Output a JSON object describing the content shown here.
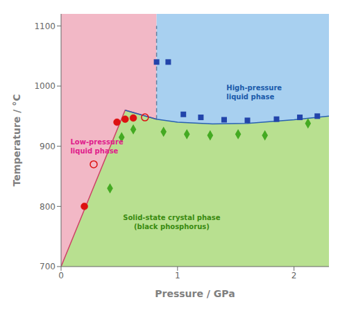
{
  "chart_data": {
    "type": "scatter",
    "xlabel": "Pressure / GPa",
    "ylabel": "Temperature / °C",
    "xlim": [
      0,
      2.3
    ],
    "ylim": [
      700,
      1120
    ],
    "xticks": [
      0,
      1,
      2
    ],
    "yticks": [
      700,
      800,
      900,
      1000,
      1100
    ],
    "grid": false,
    "regions": [
      {
        "color": "#B8E090",
        "x": [
          0.0,
          0.55,
          0.82,
          1.0,
          1.3,
          1.6,
          2.0,
          2.3
        ],
        "lower": [
          700,
          700,
          700,
          700,
          700,
          700,
          700,
          700
        ],
        "upper": [
          700,
          960,
          945,
          940,
          937,
          938,
          944,
          950
        ]
      },
      {
        "color": "#F2B8C6",
        "x": [
          0.0,
          0.55,
          0.82
        ],
        "lower": [
          700,
          960,
          945
        ],
        "upper": [
          1120,
          1120,
          1120
        ]
      },
      {
        "color": "#A8D0F0",
        "x": [
          0.82,
          1.0,
          1.3,
          1.6,
          2.0,
          2.3
        ],
        "lower": [
          945,
          940,
          937,
          938,
          944,
          950
        ],
        "upper": [
          1120,
          1120,
          1120,
          1120,
          1120,
          1120
        ]
      }
    ],
    "boundaries": [
      {
        "x": [
          0.0,
          0.55,
          0.82
        ],
        "y": [
          700,
          960,
          945
        ],
        "color": "#CC4466",
        "line_style": "solid"
      },
      {
        "x": [
          0.82,
          0.82
        ],
        "y": [
          945,
          1100
        ],
        "color": "#6080A0",
        "line_style": "dashed"
      },
      {
        "x": [
          0.55,
          0.82,
          1.0,
          1.3,
          1.6,
          2.0,
          2.3
        ],
        "y": [
          960,
          945,
          940,
          937,
          938,
          944,
          950
        ],
        "color": "#2860B0",
        "line_style": "solid"
      }
    ],
    "series": [
      {
        "type": "scatter",
        "marker": "circle",
        "color": "#DD1111",
        "x": [
          0.2,
          0.28,
          0.48,
          0.55,
          0.62,
          0.72
        ],
        "values": [
          800,
          870,
          940,
          945,
          947,
          948
        ],
        "filled": [
          true,
          false,
          true,
          true,
          true,
          false
        ]
      },
      {
        "type": "scatter",
        "marker": "square",
        "color": "#2244AA",
        "x": [
          0.82,
          0.92,
          1.05,
          1.2,
          1.4,
          1.6,
          1.85,
          2.05,
          2.2
        ],
        "values": [
          1040,
          1040,
          953,
          948,
          944,
          943,
          945,
          948,
          950
        ]
      },
      {
        "type": "scatter",
        "marker": "diamond",
        "color": "#44AA22",
        "x": [
          0.42,
          0.52,
          0.62,
          0.88,
          1.08,
          1.28,
          1.52,
          1.75,
          2.12
        ],
        "values": [
          830,
          915,
          928,
          924,
          920,
          918,
          920,
          918,
          938
        ]
      }
    ],
    "annotations": [
      {
        "text": "Low-pressure\nliquid phase",
        "x": 0.08,
        "y": 900,
        "color": "#E0208C",
        "anchor": "start"
      },
      {
        "text": "High-pressure\nliquid phase",
        "x": 1.42,
        "y": 990,
        "color": "#1A5AAA",
        "anchor": "start"
      },
      {
        "text": "Solid-state crystal phase\n(black phosphorus)",
        "x": 0.95,
        "y": 775,
        "color": "#3A8A10",
        "anchor": "middle"
      }
    ]
  }
}
